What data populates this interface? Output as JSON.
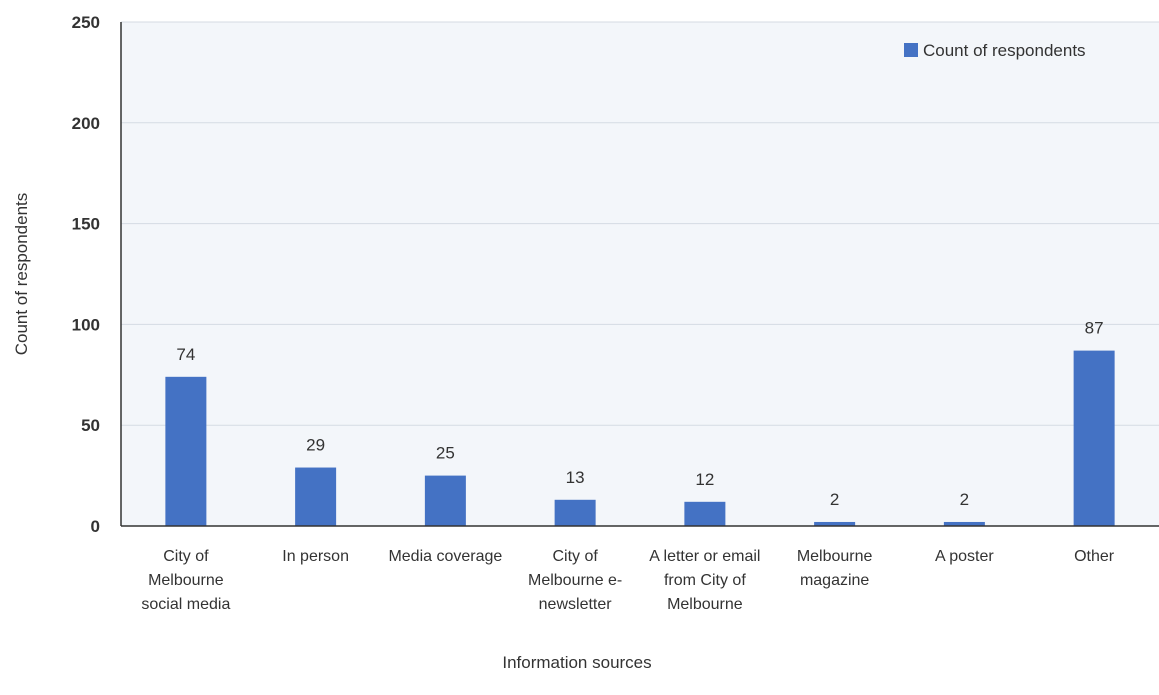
{
  "chart_data": {
    "type": "bar",
    "categories": [
      [
        "City of",
        "Melbourne",
        "social media"
      ],
      [
        "In person"
      ],
      [
        "Media coverage"
      ],
      [
        "City of",
        "Melbourne e-",
        "newsletter"
      ],
      [
        "A letter or email",
        "from City of",
        "Melbourne"
      ],
      [
        "Melbourne",
        "magazine"
      ],
      [
        "A poster"
      ],
      [
        "Other"
      ]
    ],
    "series": [
      {
        "name": "Count of respondents",
        "values": [
          74,
          29,
          25,
          13,
          12,
          2,
          2,
          87
        ],
        "color": "#4472c4"
      }
    ],
    "xlabel": "Information sources",
    "ylabel": "Count of respondents",
    "ylim": [
      0,
      250
    ],
    "yticks": [
      0,
      50,
      100,
      150,
      200,
      250
    ],
    "data_labels": [
      "74",
      "29",
      "25",
      "13",
      "12",
      "2",
      "2",
      "87"
    ],
    "grid": true,
    "legend_position": "top-right",
    "plot_background": "#f3f6fa",
    "grid_color": "#d5dbe3"
  }
}
